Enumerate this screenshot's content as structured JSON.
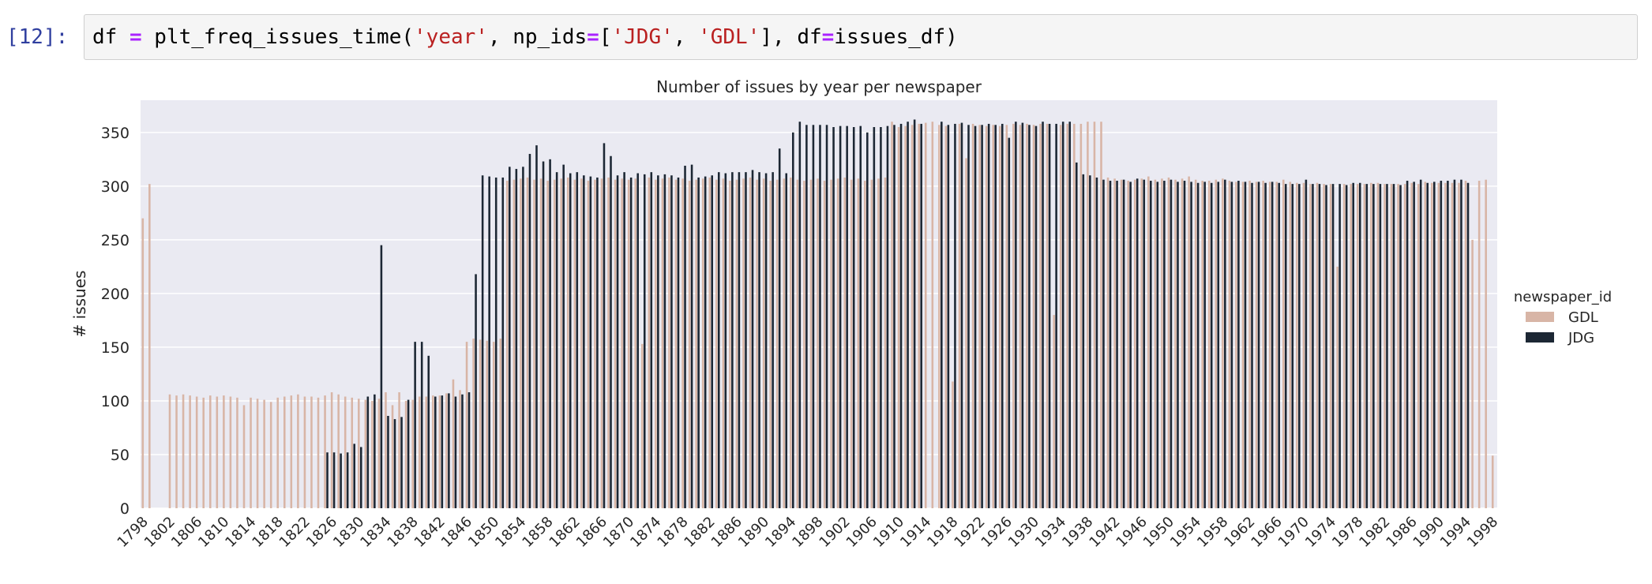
{
  "cell": {
    "prompt": "[12]:",
    "code": {
      "var": "df",
      "eq": "=",
      "func": "plt_freq_issues_time(",
      "arg1": "'year'",
      "sep1": ", np_ids",
      "eq2": "=",
      "lb": "[",
      "arg2": "'JDG'",
      "sep2": ", ",
      "arg3": "'GDL'",
      "sep3": "], df",
      "eq3": "=",
      "tail": "issues_df)"
    }
  },
  "colors": {
    "GDL": "#d8b5a6",
    "JDG": "#1c2734",
    "plot_bg": "#eaeaf2",
    "grid": "#ffffff"
  },
  "chart_data": {
    "type": "bar",
    "title": "Number of issues by year per newspaper",
    "xlabel": "",
    "ylabel": "# issues",
    "ylim": [
      0,
      380
    ],
    "yticks": [
      0,
      50,
      100,
      150,
      200,
      250,
      300,
      350
    ],
    "grid": true,
    "legend": {
      "title": "newspaper_id",
      "placement": "right",
      "entries": [
        "GDL",
        "JDG"
      ]
    },
    "x_start": 1798,
    "x_end": 1998,
    "xtick_labels": [
      "1798",
      "1802",
      "1806",
      "1810",
      "1814",
      "1818",
      "1822",
      "1826",
      "1830",
      "1834",
      "1838",
      "1842",
      "1846",
      "1850",
      "1854",
      "1858",
      "1862",
      "1866",
      "1870",
      "1874",
      "1878",
      "1882",
      "1886",
      "1890",
      "1894",
      "1898",
      "1902",
      "1906",
      "1910",
      "1914",
      "1918",
      "1922",
      "1926",
      "1930",
      "1934",
      "1938",
      "1942",
      "1946",
      "1950",
      "1954",
      "1958",
      "1962",
      "1966",
      "1970",
      "1974",
      "1978",
      "1982",
      "1986",
      "1990",
      "1994",
      "1998"
    ],
    "series": [
      {
        "name": "GDL",
        "values": [
          270,
          302,
          0,
          0,
          106,
          105,
          106,
          105,
          104,
          103,
          105,
          104,
          105,
          104,
          103,
          96,
          103,
          102,
          101,
          99,
          103,
          104,
          105,
          106,
          104,
          104,
          103,
          105,
          108,
          106,
          104,
          103,
          102,
          101,
          100,
          102,
          108,
          96,
          108,
          100,
          101,
          104,
          104,
          105,
          105,
          107,
          120,
          110,
          155,
          158,
          157,
          156,
          155,
          158,
          305,
          306,
          307,
          308,
          306,
          307,
          305,
          306,
          307,
          308,
          306,
          307,
          305,
          306,
          307,
          308,
          306,
          307,
          306,
          307,
          153,
          308,
          306,
          307,
          308,
          306,
          307,
          305,
          306,
          307,
          308,
          306,
          307,
          305,
          306,
          307,
          308,
          306,
          307,
          305,
          306,
          307,
          308,
          306,
          305,
          306,
          307,
          305,
          306,
          307,
          308,
          306,
          307,
          305,
          306,
          307,
          308,
          360,
          355,
          356,
          357,
          358,
          359,
          360,
          357,
          356,
          118,
          358,
          326,
          358,
          357,
          356,
          357,
          356,
          357,
          358,
          357,
          358,
          357,
          358,
          358,
          180,
          357,
          358,
          358,
          358,
          360,
          360,
          360,
          308,
          307,
          306,
          305,
          306,
          307,
          309,
          306,
          307,
          308,
          306,
          307,
          309,
          306,
          305,
          305,
          306,
          307,
          305,
          304,
          304,
          305,
          304,
          305,
          304,
          304,
          306,
          304,
          303,
          303,
          302,
          303,
          302,
          302,
          225,
          302,
          302,
          302,
          302,
          303,
          303,
          302,
          302,
          302,
          302,
          303,
          302,
          304,
          303,
          303,
          303,
          303,
          303,
          305,
          250,
          305,
          306,
          49
        ]
      },
      {
        "name": "JDG",
        "values": [
          0,
          0,
          0,
          0,
          0,
          0,
          0,
          0,
          0,
          0,
          0,
          0,
          0,
          0,
          0,
          0,
          0,
          0,
          0,
          0,
          0,
          0,
          0,
          0,
          0,
          0,
          0,
          52,
          52,
          51,
          52,
          60,
          57,
          104,
          106,
          245,
          86,
          83,
          85,
          101,
          155,
          155,
          142,
          104,
          105,
          107,
          104,
          106,
          108,
          218,
          310,
          309,
          308,
          308,
          318,
          316,
          318,
          330,
          338,
          323,
          325,
          313,
          320,
          312,
          313,
          310,
          309,
          308,
          340,
          328,
          310,
          313,
          308,
          312,
          311,
          313,
          310,
          311,
          310,
          308,
          319,
          320,
          308,
          309,
          310,
          313,
          312,
          313,
          313,
          313,
          315,
          313,
          312,
          313,
          335,
          312,
          350,
          360,
          357,
          357,
          357,
          357,
          355,
          356,
          356,
          355,
          356,
          350,
          355,
          355,
          356,
          357,
          358,
          360,
          362,
          358,
          0,
          0,
          360,
          357,
          358,
          359,
          357,
          356,
          357,
          358,
          357,
          358,
          345,
          360,
          359,
          357,
          356,
          360,
          358,
          358,
          360,
          360,
          322,
          311,
          310,
          308,
          306,
          305,
          305,
          306,
          304,
          307,
          306,
          305,
          304,
          305,
          306,
          304,
          305,
          304,
          303,
          304,
          303,
          304,
          306,
          304,
          305,
          304,
          303,
          304,
          303,
          304,
          303,
          302,
          302,
          302,
          306,
          302,
          302,
          301,
          302,
          302,
          301,
          303,
          303,
          302,
          302,
          302,
          302,
          302,
          301,
          305,
          304,
          306,
          303,
          304,
          305,
          305,
          306,
          306,
          303,
          0
        ]
      }
    ]
  }
}
